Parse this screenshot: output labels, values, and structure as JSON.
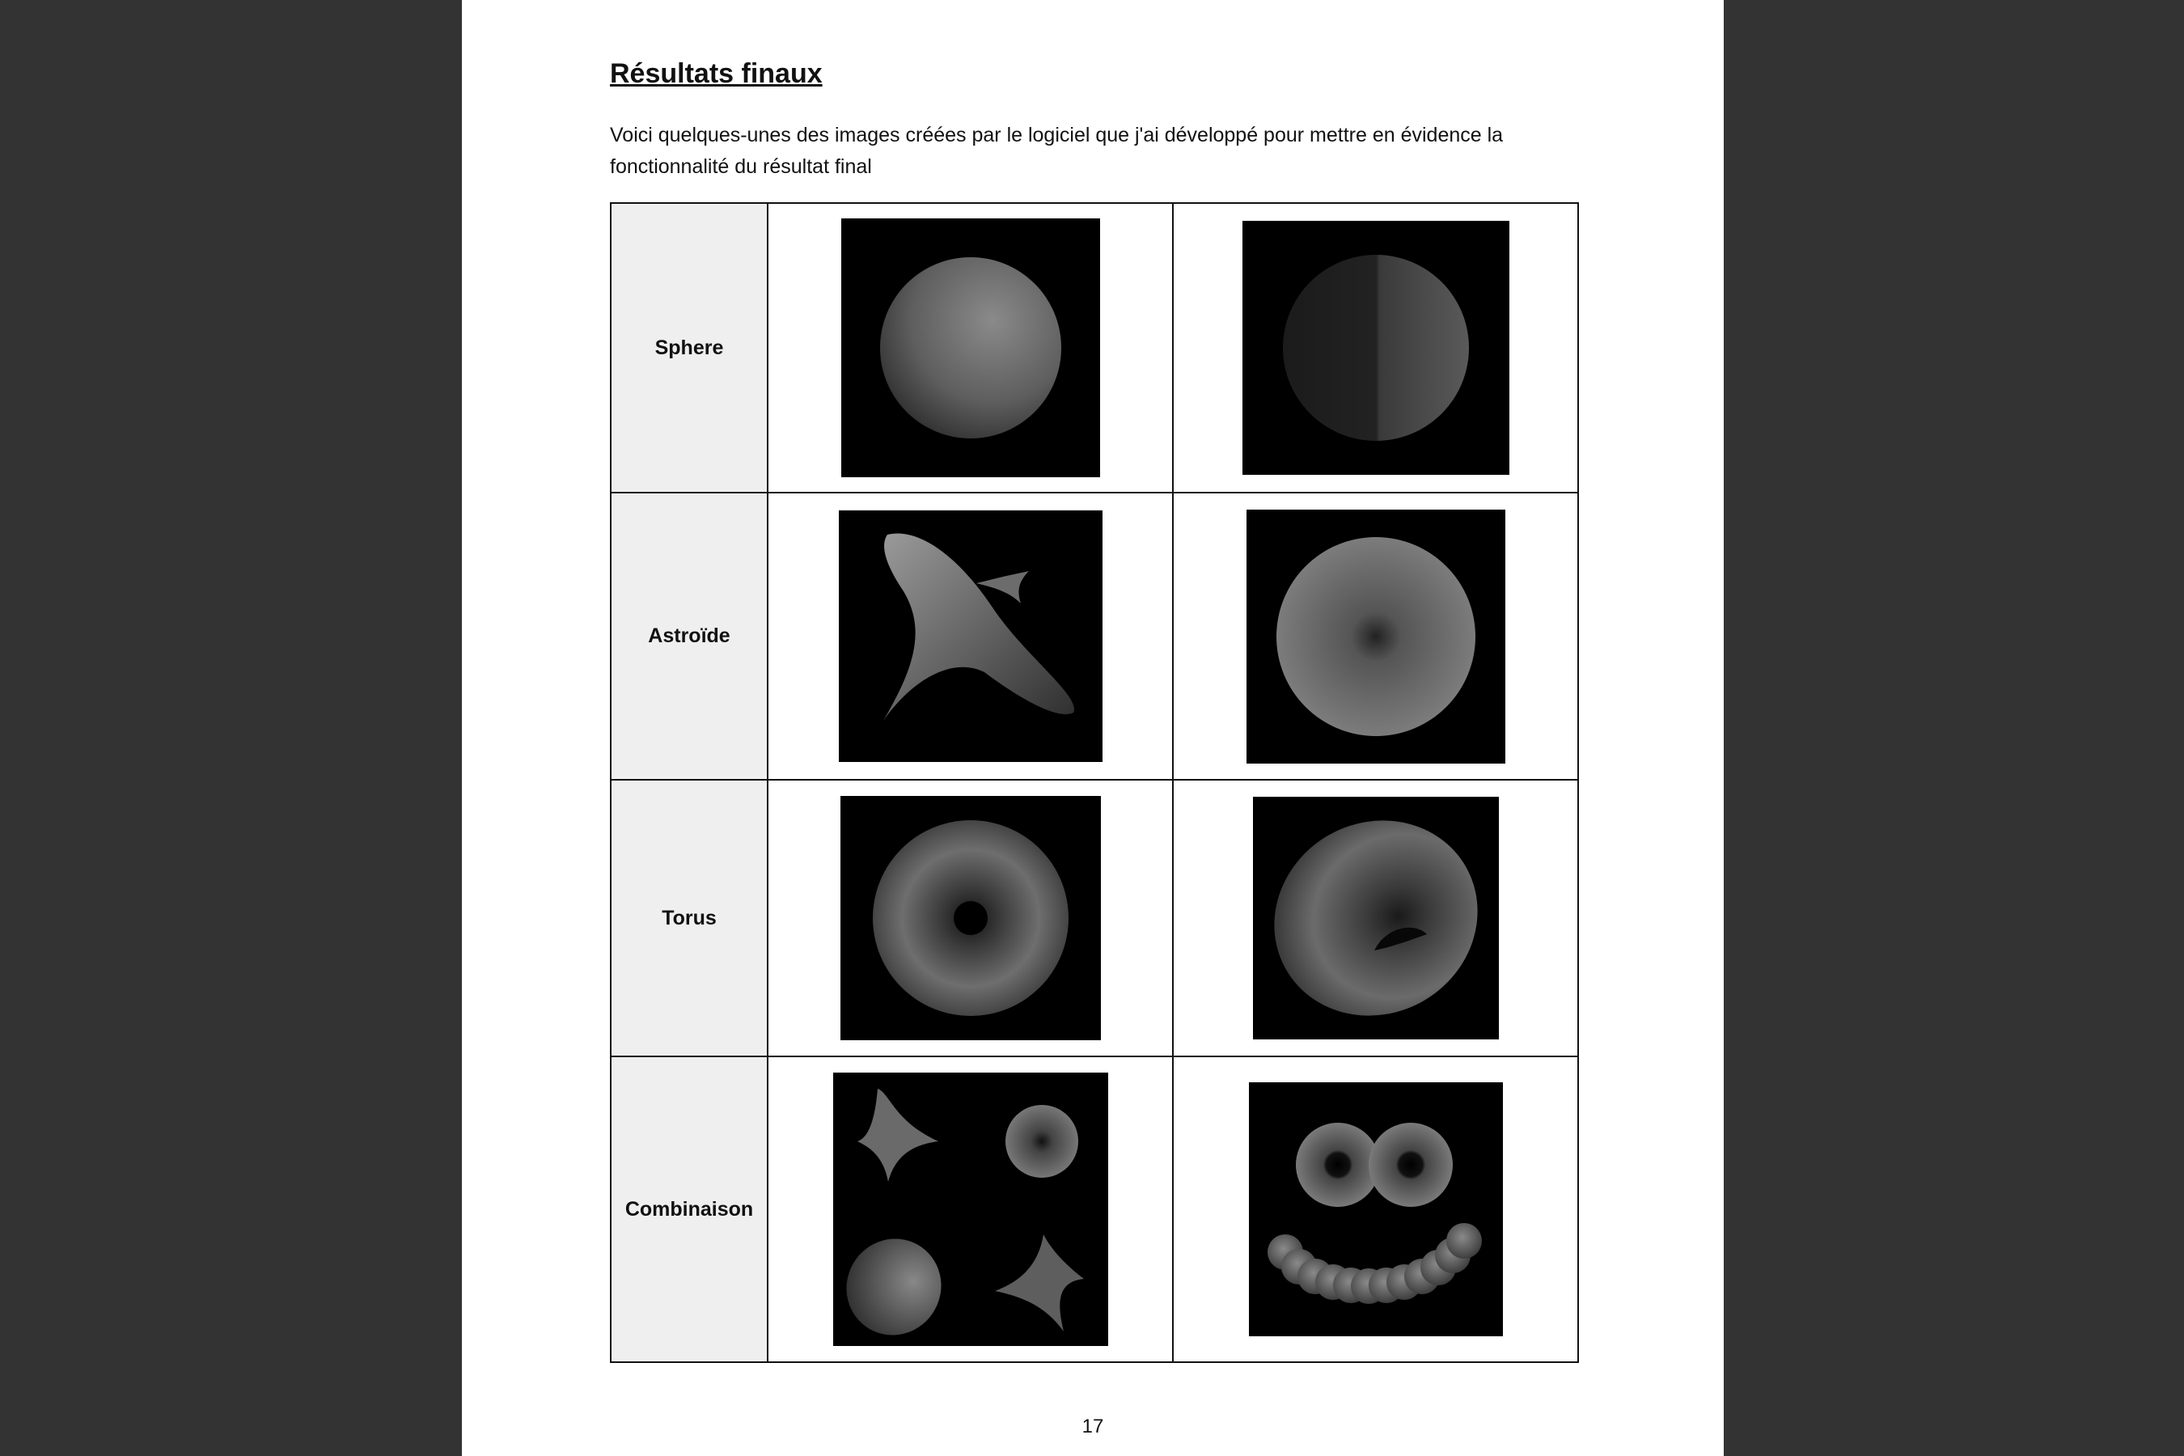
{
  "document": {
    "title": "Résultats finaux",
    "intro": "Voici quelques-unes des images créées par le logiciel que j'ai développé pour mettre en évidence la fonctionnalité du résultat final",
    "page_number": "17"
  },
  "table": {
    "rows": [
      {
        "label": "Sphere"
      },
      {
        "label": "Astroïde"
      },
      {
        "label": "Torus"
      },
      {
        "label": "Combinaison"
      }
    ]
  },
  "colors": {
    "viewer_background": "#333333",
    "page_background": "#ffffff",
    "label_cell_background": "#efefef",
    "render_background": "#000000"
  }
}
